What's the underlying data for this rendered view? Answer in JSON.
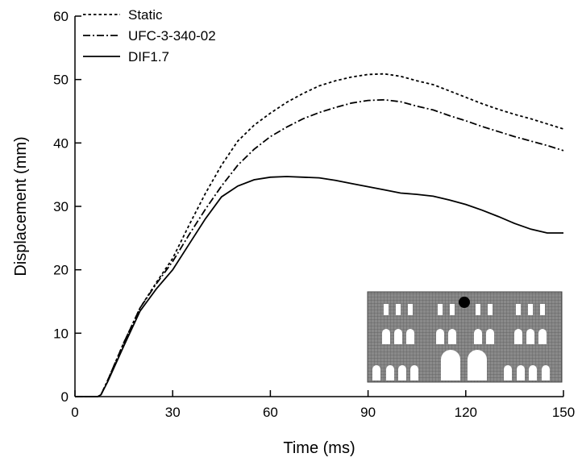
{
  "chart_data": {
    "type": "line",
    "x_label": "Time (ms)",
    "y_label": "Displacement (mm)",
    "x": [
      0,
      7,
      8,
      10,
      15,
      20,
      25,
      30,
      35,
      40,
      45,
      50,
      55,
      60,
      65,
      70,
      75,
      80,
      85,
      90,
      95,
      100,
      105,
      110,
      115,
      120,
      125,
      130,
      135,
      140,
      145,
      150
    ],
    "series": [
      {
        "name": "Static",
        "color": "#000000",
        "linestyle": "dotted",
        "values": [
          0,
          0,
          0.3,
          2.5,
          8.5,
          14,
          18,
          21.8,
          27,
          32,
          36.5,
          40.3,
          42.8,
          44.7,
          46.4,
          47.8,
          49,
          49.8,
          50.4,
          50.8,
          50.9,
          50.5,
          49.8,
          49.2,
          48.2,
          47.2,
          46.2,
          45.3,
          44.5,
          43.8,
          43,
          42.2
        ]
      },
      {
        "name": "UFC-3-340-02",
        "color": "#000000",
        "linestyle": "dashdot",
        "values": [
          0,
          0,
          0.3,
          2.5,
          8.5,
          14,
          17.8,
          21.3,
          25.5,
          29.5,
          33.2,
          36.5,
          39,
          41,
          42.5,
          43.8,
          44.8,
          45.6,
          46.3,
          46.7,
          46.8,
          46.5,
          45.8,
          45.2,
          44.3,
          43.5,
          42.6,
          41.8,
          41,
          40.3,
          39.6,
          38.8
        ]
      },
      {
        "name": "DIF1.7",
        "color": "#000000",
        "linestyle": "solid",
        "values": [
          0,
          0,
          0.3,
          2.3,
          8,
          13.5,
          17,
          20,
          24,
          28,
          31.5,
          33.2,
          34.2,
          34.6,
          34.7,
          34.6,
          34.5,
          34.1,
          33.6,
          33.1,
          32.6,
          32.1,
          31.9,
          31.6,
          31,
          30.3,
          29.4,
          28.4,
          27.3,
          26.4,
          25.8,
          25.8
        ]
      }
    ],
    "xlim": [
      0,
      150
    ],
    "xticks": [
      0,
      30,
      60,
      90,
      120,
      150
    ],
    "ylim": [
      0,
      60
    ],
    "yticks": [
      0,
      10,
      20,
      30,
      40,
      50,
      60
    ],
    "legend": "upper left",
    "grid": false
  }
}
